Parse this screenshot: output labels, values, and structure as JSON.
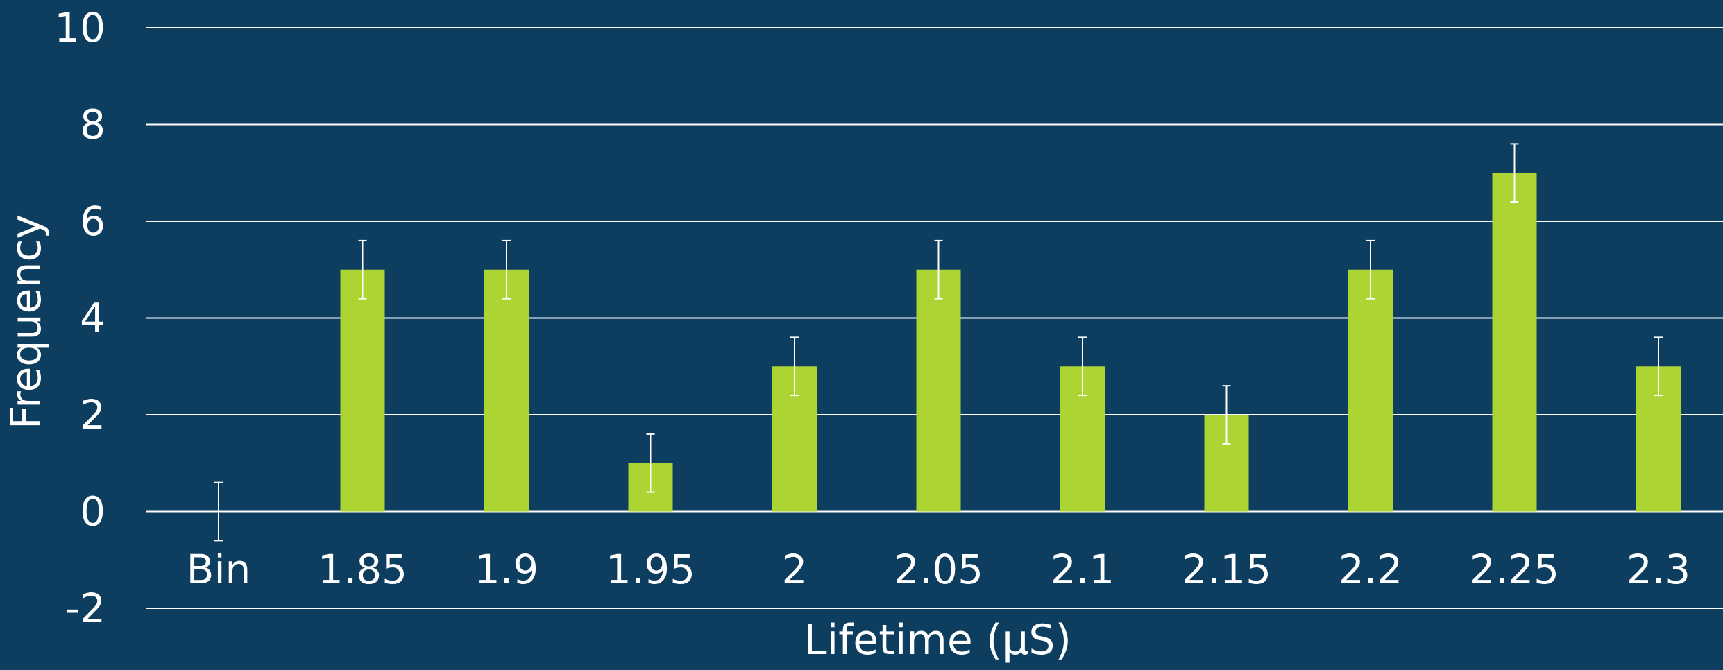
{
  "colors": {
    "background": "#0d3e5f",
    "bar": "#acd433",
    "gridline": "#ffffff",
    "text": "#ffffff",
    "error_bar": "#ffffff"
  },
  "chart_data": {
    "type": "bar",
    "title": "",
    "xlabel": "Lifetime (µS)",
    "ylabel": "Frequency",
    "categories": [
      "Bin",
      "1.85",
      "1.9",
      "1.95",
      "2",
      "2.05",
      "2.1",
      "2.15",
      "2.2",
      "2.25",
      "2.3"
    ],
    "values": [
      0,
      5,
      5,
      1,
      3,
      5,
      3,
      2,
      5,
      7,
      3
    ],
    "error": [
      0.6,
      0.6,
      0.6,
      0.6,
      0.6,
      0.6,
      0.6,
      0.6,
      0.6,
      0.6,
      0.6
    ],
    "ylim": [
      -2,
      10
    ],
    "yticks": [
      -2,
      0,
      2,
      4,
      6,
      8,
      10
    ],
    "grid": true,
    "legend": "none"
  }
}
